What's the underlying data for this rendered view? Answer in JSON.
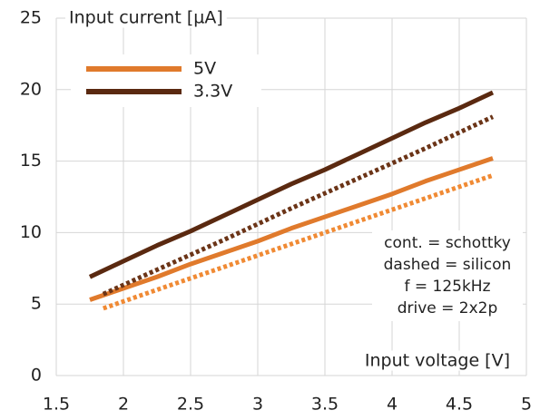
{
  "chart_data": {
    "type": "line",
    "ylabel": "Input current [µA]",
    "xlabel": "Input voltage [V]",
    "xlim": [
      1.5,
      5
    ],
    "xticks": [
      1.5,
      2,
      2.5,
      3,
      3.5,
      4,
      4.5,
      5
    ],
    "ylim": [
      0,
      25
    ],
    "yticks": [
      0,
      5,
      10,
      15,
      20,
      25
    ],
    "grid": true,
    "legend": "upper left",
    "annotations": [
      "cont. = schottky",
      "dashed = silicon",
      "f = 125kHz",
      "drive = 2x2p"
    ],
    "series": [
      {
        "name": "5V",
        "color": "#e07a2c",
        "dashed": false,
        "x": [
          1.75,
          2,
          2.25,
          2.5,
          2.75,
          3,
          3.25,
          3.5,
          3.75,
          4,
          4.25,
          4.5,
          4.75
        ],
        "values": [
          5.3,
          6.1,
          6.9,
          7.8,
          8.6,
          9.4,
          10.3,
          11.1,
          11.9,
          12.7,
          13.6,
          14.4,
          15.2
        ]
      },
      {
        "name": "3.3V",
        "color": "#5a2910",
        "dashed": false,
        "x": [
          1.75,
          2,
          2.25,
          2.5,
          2.75,
          3,
          3.25,
          3.5,
          3.75,
          4,
          4.25,
          4.5,
          4.75
        ],
        "values": [
          6.9,
          8.0,
          9.1,
          10.1,
          11.2,
          12.3,
          13.4,
          14.4,
          15.5,
          16.6,
          17.7,
          18.7,
          19.8
        ]
      },
      {
        "color": "#6b3417",
        "dashed": true,
        "x": [
          1.85,
          2.25,
          2.75,
          3.25,
          3.75,
          4.25,
          4.75
        ],
        "values": [
          5.7,
          7.4,
          9.5,
          11.7,
          13.8,
          15.9,
          18.1
        ]
      },
      {
        "color": "#f08a34",
        "dashed": true,
        "x": [
          1.85,
          2.25,
          2.75,
          3.25,
          3.75,
          4.25,
          4.75
        ],
        "values": [
          4.7,
          6.0,
          7.6,
          9.2,
          10.8,
          12.4,
          14.0
        ]
      }
    ]
  }
}
